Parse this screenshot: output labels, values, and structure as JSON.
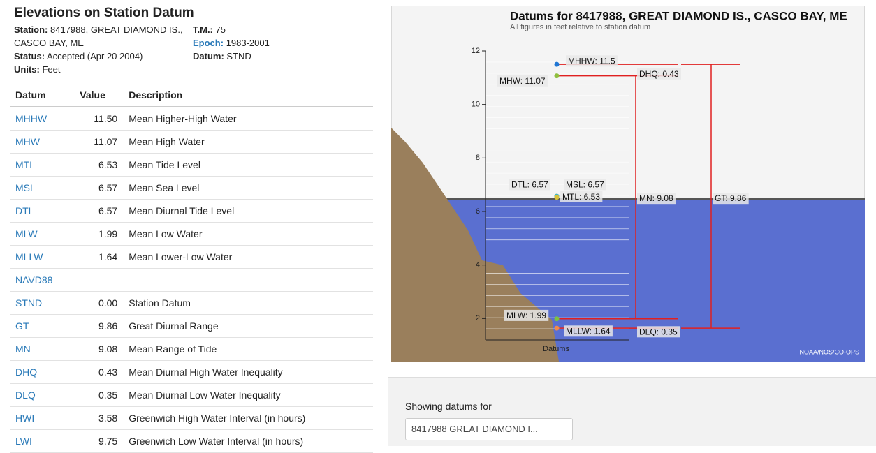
{
  "header": {
    "title": "Elevations on Station Datum"
  },
  "info": {
    "station": {
      "label": "Station:",
      "value": "8417988, GREAT DIAMOND IS., CASCO BAY, ME"
    },
    "tm": {
      "label": "T.M.:",
      "value": "75"
    },
    "epoch": {
      "label": "Epoch:",
      "value": "1983-2001"
    },
    "status": {
      "label": "Status:",
      "value": "Accepted (Apr 20 2004)"
    },
    "datum": {
      "label": "Datum:",
      "value": "STND"
    },
    "units": {
      "label": "Units:",
      "value": "Feet"
    }
  },
  "table": {
    "columns": [
      "Datum",
      "Value",
      "Description"
    ],
    "rows": [
      [
        "MHHW",
        "11.50",
        "Mean Higher-High Water"
      ],
      [
        "MHW",
        "11.07",
        "Mean High Water"
      ],
      [
        "MTL",
        "6.53",
        "Mean Tide Level"
      ],
      [
        "MSL",
        "6.57",
        "Mean Sea Level"
      ],
      [
        "DTL",
        "6.57",
        "Mean Diurnal Tide Level"
      ],
      [
        "MLW",
        "1.99",
        "Mean Low Water"
      ],
      [
        "MLLW",
        "1.64",
        "Mean Lower-Low Water"
      ],
      [
        "NAVD88"
      ],
      [
        "STND",
        "0.00",
        "Station Datum"
      ],
      [
        "GT",
        "9.86",
        "Great Diurnal Range"
      ],
      [
        "MN",
        "9.08",
        "Mean Range of Tide"
      ],
      [
        "DHQ",
        "0.43",
        "Mean Diurnal High Water Inequality"
      ],
      [
        "DLQ",
        "0.35",
        "Mean Diurnal Low Water Inequality"
      ],
      [
        "HWI",
        "3.58",
        "Greenwich High Water Interval (in hours)"
      ],
      [
        "LWI",
        "9.75",
        "Greenwich Low Water Interval (in hours)"
      ]
    ]
  },
  "chart_data": {
    "type": "datum",
    "title": "Datums for 8417988, GREAT DIAMOND IS., CASCO BAY, ME",
    "subtitle": "All figures in feet relative to station datum",
    "xlabel": "Datums",
    "ylim": [
      1.2,
      12
    ],
    "yticks": [
      2,
      4,
      6,
      8,
      10,
      12
    ],
    "points": {
      "values": [
        11.5,
        11.07,
        6.57,
        6.57,
        6.53,
        1.99,
        1.64
      ],
      "value_labels": [
        "MHHW: 11.5",
        "MHW: 11.07",
        "DTL: 6.57",
        "MSL: 6.57",
        "MTL: 6.53",
        "MLW: 1.99",
        "MLLW: 1.64"
      ],
      "colors": [
        "#1f77d4",
        "#8fbf3f",
        "#e8a23a",
        "#3fb7c9",
        "#d8c23a",
        "#7cc242",
        "#f08a4b"
      ]
    },
    "ranges": [
      {
        "label": "DHQ: 0.43",
        "value": 0.43,
        "low": 11.07,
        "high": 11.5
      },
      {
        "label": "DLQ: 0.35",
        "value": 0.35,
        "low": 1.64,
        "high": 1.99
      },
      {
        "label": "MN: 9.08",
        "value": 9.08,
        "low": 1.99,
        "high": 11.07
      },
      {
        "label": "GT: 9.86",
        "value": 9.86,
        "low": 1.64,
        "high": 11.5
      }
    ],
    "color": "#e02020",
    "credit": "NOAA/NOS/CO-OPS"
  },
  "selector": {
    "label": "Showing datums for",
    "selected": "8417988 GREAT DIAMOND I..."
  }
}
